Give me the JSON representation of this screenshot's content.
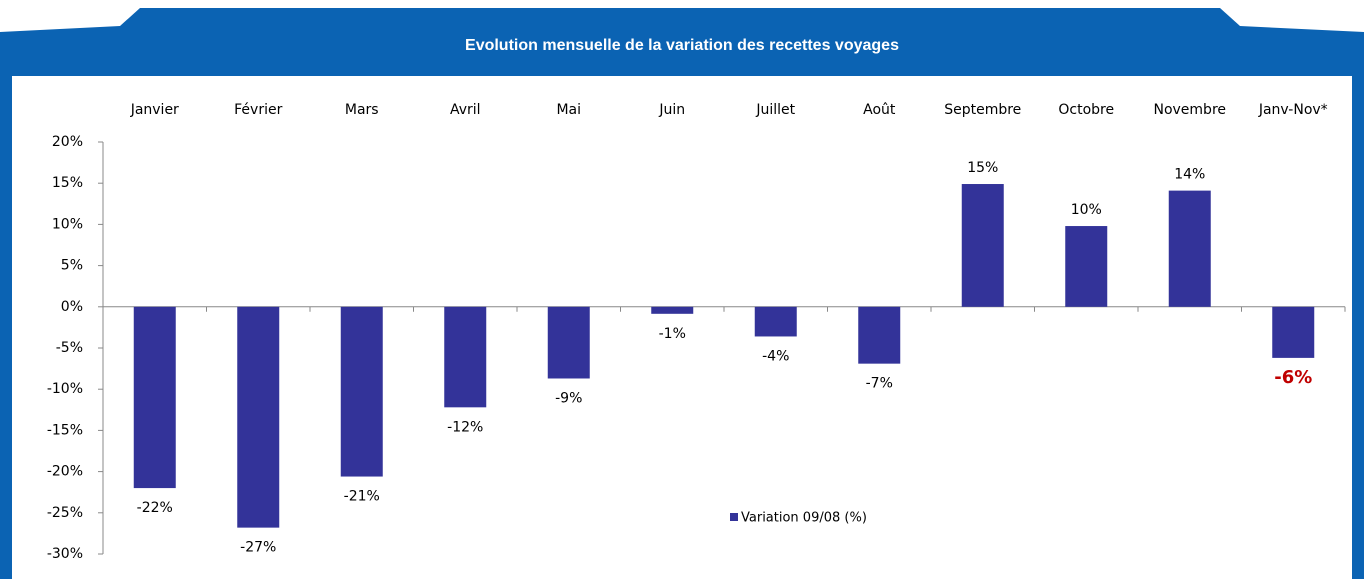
{
  "chart_data": {
    "type": "bar",
    "title": "Evolution mensuelle de la variation des recettes voyages",
    "categories": [
      "Janvier",
      "Février",
      "Mars",
      "Avril",
      "Mai",
      "Juin",
      "Juillet",
      "Août",
      "Septembre",
      "Octobre",
      "Novembre",
      "Janv-Nov*"
    ],
    "series": [
      {
        "name": "Variation 09/08 (%)",
        "color": "#333399",
        "values": [
          -22,
          -26.8,
          -20.6,
          -12.2,
          -8.7,
          -0.85,
          -3.6,
          -6.9,
          14.9,
          9.8,
          14.1,
          -6.2
        ],
        "value_labels": [
          "-22%",
          "-27%",
          "-21%",
          "-12%",
          "-9%",
          "-1%",
          "-4%",
          "-7%",
          "15%",
          "10%",
          "14%",
          "-6%"
        ]
      }
    ],
    "highlight": {
      "index": 11,
      "color": "#c00000"
    },
    "ylim": [
      -30,
      20
    ],
    "yticks": [
      {
        "value": -30,
        "label": "-30%"
      },
      {
        "value": -25,
        "label": "-25%"
      },
      {
        "value": -20,
        "label": "-20%"
      },
      {
        "value": -15,
        "label": "-15%"
      },
      {
        "value": -10,
        "label": "-10%"
      },
      {
        "value": -5,
        "label": "-5%"
      },
      {
        "value": 0,
        "label": "0%"
      },
      {
        "value": 5,
        "label": "5%"
      },
      {
        "value": 10,
        "label": "10%"
      },
      {
        "value": 15,
        "label": "15%"
      },
      {
        "value": 20,
        "label": "20%"
      }
    ],
    "legend": "bottom"
  }
}
